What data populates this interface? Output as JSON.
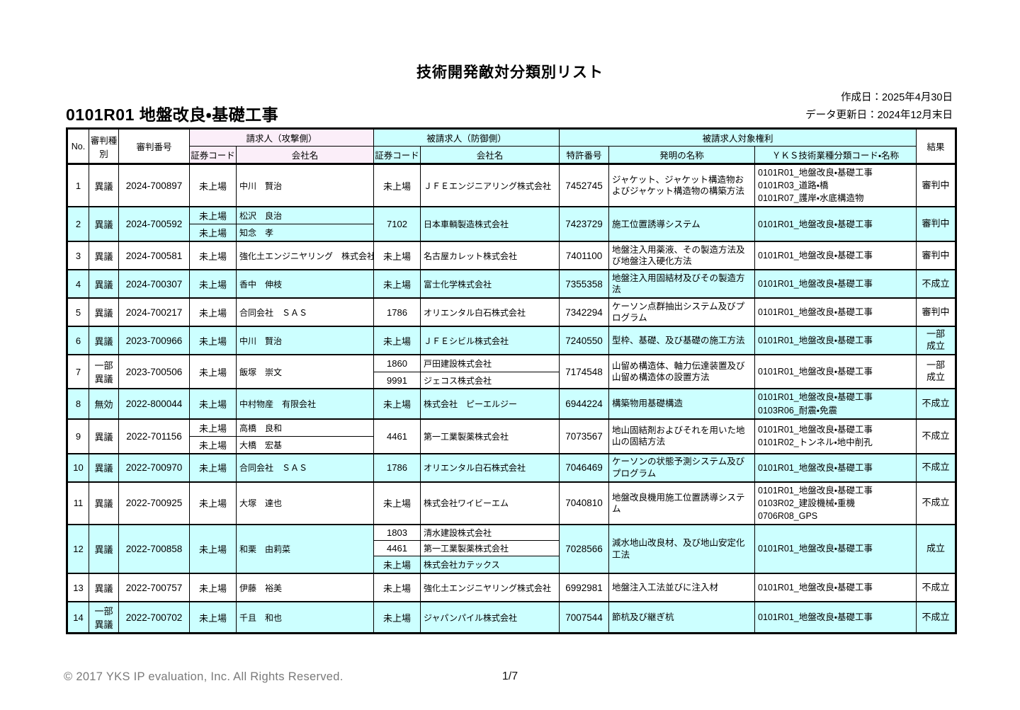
{
  "page": {
    "title": "技術開発敵対分類別リスト",
    "created_date": "作成日：2025年4月30日",
    "updated_date": "データ更新日：2024年12月末日",
    "section_title": "0101R01 地盤改良・基礎工事",
    "footer_copyright": "© 2017 YKS IP evaluation, Inc. All Rights Reserved.",
    "page_number": "1/7"
  },
  "colors": {
    "row_shade": "#CCFFFF",
    "claimant_header": "#FBEEF9",
    "respondent_header": "#CCFFFF"
  },
  "table": {
    "headers": {
      "no": "No.",
      "trial_type": "審判種別",
      "trial_number": "審判番号",
      "claimant_group": "請求人（攻撃側）",
      "respondent_group": "被請求人（防御側）",
      "rights_group": "被請求人対象権利",
      "sec_code_claimant": "証券コード",
      "company_claimant": "会社名",
      "sec_code_respondent": "証券コード",
      "company_respondent": "会社名",
      "patent_number": "特許番号",
      "invention": "発明の名称",
      "yks": "ＹＫＳ技術業種分類コード・名称",
      "result": "結果"
    },
    "rows": [
      {
        "no": "1",
        "type": "異議",
        "number": "2024-700897",
        "claimants": [
          {
            "code": "未上場",
            "name": "中川　賢治"
          }
        ],
        "respondents": [
          {
            "code": "未上場",
            "name": "ＪＦＥエンジニアリング株式会社"
          }
        ],
        "patent": "7452745",
        "invention": "ジャケット、ジャケット構造物およびジャケット構造物の構築方法",
        "yks": [
          "0101R01_地盤改良・基礎工事",
          "0101R03_道路・橋",
          "0101R07_護岸・水底構造物"
        ],
        "result": "審判中",
        "shaded": false
      },
      {
        "no": "2",
        "type": "異議",
        "number": "2024-700592",
        "claimants": [
          {
            "code": "未上場",
            "name": "松沢　良治"
          },
          {
            "code": "未上場",
            "name": "知念　孝"
          }
        ],
        "respondents": [
          {
            "code": "7102",
            "name": "日本車輌製造株式会社"
          }
        ],
        "patent": "7423729",
        "invention": "施工位置誘導システム",
        "yks": [
          "0101R01_地盤改良・基礎工事"
        ],
        "result": "審判中",
        "shaded": true
      },
      {
        "no": "3",
        "type": "異議",
        "number": "2024-700581",
        "claimants": [
          {
            "code": "未上場",
            "name": "強化土エンジニヤリング　株式会社"
          }
        ],
        "respondents": [
          {
            "code": "未上場",
            "name": "名古屋カレット株式会社"
          }
        ],
        "patent": "7401100",
        "invention": "地盤注入用薬液、その製造方法及び地盤注入硬化方法",
        "yks": [
          "0101R01_地盤改良・基礎工事"
        ],
        "result": "審判中",
        "shaded": false
      },
      {
        "no": "4",
        "type": "異議",
        "number": "2024-700307",
        "claimants": [
          {
            "code": "未上場",
            "name": "香中　伸枝"
          }
        ],
        "respondents": [
          {
            "code": "未上場",
            "name": "富士化学株式会社"
          }
        ],
        "patent": "7355358",
        "invention": "地盤注入用固結材及びその製造方法",
        "yks": [
          "0101R01_地盤改良・基礎工事"
        ],
        "result": "不成立",
        "shaded": true
      },
      {
        "no": "5",
        "type": "異議",
        "number": "2024-700217",
        "claimants": [
          {
            "code": "未上場",
            "name": "合同会社　ＳＡＳ"
          }
        ],
        "respondents": [
          {
            "code": "1786",
            "name": "オリエンタル白石株式会社"
          }
        ],
        "patent": "7342294",
        "invention": "ケーソン点群抽出システム及びプログラム",
        "yks": [
          "0101R01_地盤改良・基礎工事"
        ],
        "result": "審判中",
        "shaded": false
      },
      {
        "no": "6",
        "type": "異議",
        "number": "2023-700966",
        "claimants": [
          {
            "code": "未上場",
            "name": "中川　賢治"
          }
        ],
        "respondents": [
          {
            "code": "未上場",
            "name": "ＪＦＥシビル株式会社"
          }
        ],
        "patent": "7240550",
        "invention": "型枠、基礎、及び基礎の施工方法",
        "yks": [
          "0101R01_地盤改良・基礎工事"
        ],
        "result": "一部成立",
        "shaded": true
      },
      {
        "no": "7",
        "type": "一部異議",
        "number": "2023-700506",
        "claimants": [
          {
            "code": "未上場",
            "name": "飯塚　崇文"
          }
        ],
        "respondents": [
          {
            "code": "1860",
            "name": "戸田建設株式会社"
          },
          {
            "code": "9991",
            "name": "ジェコス株式会社"
          }
        ],
        "patent": "7174548",
        "invention": "山留め構造体、軸力伝達装置及び山留め構造体の設置方法",
        "yks": [
          "0101R01_地盤改良・基礎工事"
        ],
        "result": "一部成立",
        "shaded": false
      },
      {
        "no": "8",
        "type": "無効",
        "number": "2022-800044",
        "claimants": [
          {
            "code": "未上場",
            "name": "中村物産　有限会社"
          }
        ],
        "respondents": [
          {
            "code": "未上場",
            "name": "株式会社　ピーエルジー"
          }
        ],
        "patent": "6944224",
        "invention": "構築物用基礎構造",
        "yks": [
          "0101R01_地盤改良・基礎工事",
          "0103R06_耐震・免震"
        ],
        "result": "不成立",
        "shaded": true
      },
      {
        "no": "9",
        "type": "異議",
        "number": "2022-701156",
        "claimants": [
          {
            "code": "未上場",
            "name": "高橋　良和"
          },
          {
            "code": "未上場",
            "name": "大橋　宏基"
          }
        ],
        "respondents": [
          {
            "code": "4461",
            "name": "第一工業製薬株式会社"
          }
        ],
        "patent": "7073567",
        "invention": "地山固結剤およびそれを用いた地山の固結方法",
        "yks": [
          "0101R01_地盤改良・基礎工事",
          "0101R02_トンネル・地中削孔"
        ],
        "result": "不成立",
        "shaded": false
      },
      {
        "no": "10",
        "type": "異議",
        "number": "2022-700970",
        "claimants": [
          {
            "code": "未上場",
            "name": "合同会社　ＳＡＳ"
          }
        ],
        "respondents": [
          {
            "code": "1786",
            "name": "オリエンタル白石株式会社"
          }
        ],
        "patent": "7046469",
        "invention": "ケーソンの状態予測システム及びプログラム",
        "yks": [
          "0101R01_地盤改良・基礎工事"
        ],
        "result": "不成立",
        "shaded": true
      },
      {
        "no": "11",
        "type": "異議",
        "number": "2022-700925",
        "claimants": [
          {
            "code": "未上場",
            "name": "大塚　達也"
          }
        ],
        "respondents": [
          {
            "code": "未上場",
            "name": "株式会社ワイビーエム"
          }
        ],
        "patent": "7040810",
        "invention": "地盤改良機用施工位置誘導システム",
        "yks": [
          "0101R01_地盤改良・基礎工事",
          "0103R02_建設機械・重機",
          "0706R08_GPS"
        ],
        "result": "不成立",
        "shaded": false
      },
      {
        "no": "12",
        "type": "異議",
        "number": "2022-700858",
        "claimants": [
          {
            "code": "未上場",
            "name": "和栗　由莉菜"
          }
        ],
        "respondents": [
          {
            "code": "1803",
            "name": "清水建設株式会社",
            "white": true
          },
          {
            "code": "4461",
            "name": "第一工業製薬株式会社",
            "white": true
          },
          {
            "code": "未上場",
            "name": "株式会社カテックス"
          }
        ],
        "patent": "7028566",
        "invention": "減水地山改良材、及び地山安定化工法",
        "yks": [
          "0101R01_地盤改良・基礎工事"
        ],
        "result": "成立",
        "shaded": true
      },
      {
        "no": "13",
        "type": "異議",
        "number": "2022-700757",
        "claimants": [
          {
            "code": "未上場",
            "name": "伊藤　裕美"
          }
        ],
        "respondents": [
          {
            "code": "未上場",
            "name": "強化土エンジニヤリング株式会社"
          }
        ],
        "patent": "6992981",
        "invention": "地盤注入工法並びに注入材",
        "yks": [
          "0101R01_地盤改良・基礎工事"
        ],
        "result": "不成立",
        "shaded": false
      },
      {
        "no": "14",
        "type": "一部異議",
        "number": "2022-700702",
        "claimants": [
          {
            "code": "未上場",
            "name": "千且　和也"
          }
        ],
        "respondents": [
          {
            "code": "未上場",
            "name": "ジャパンパイル株式会社"
          }
        ],
        "patent": "7007544",
        "invention": "節杭及び継ぎ杭",
        "yks": [
          "0101R01_地盤改良・基礎工事"
        ],
        "result": "不成立",
        "shaded": true
      }
    ]
  }
}
